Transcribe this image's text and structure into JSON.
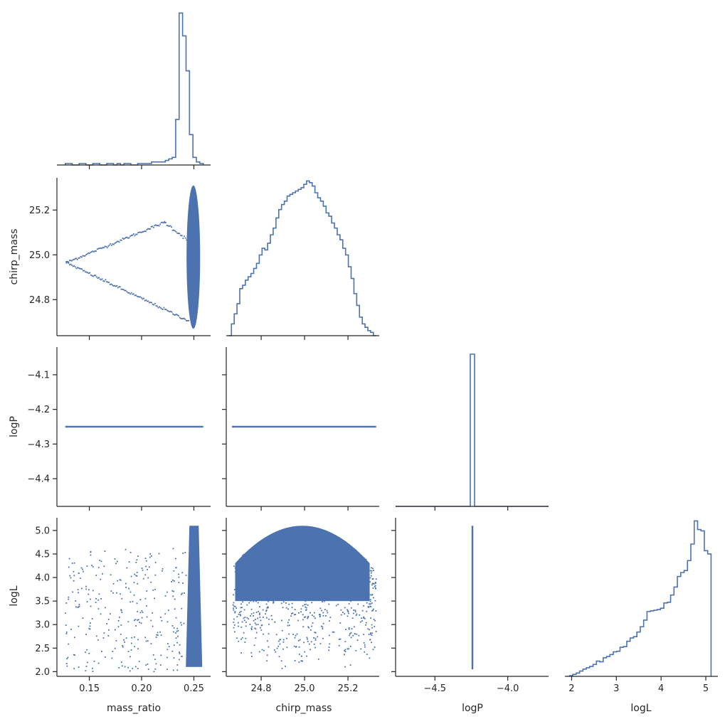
{
  "chart_data": {
    "type": "pairplot-corner",
    "color": "#4c72b0",
    "axis_color": "#262626",
    "variables": [
      "mass_ratio",
      "chirp_mass",
      "logP",
      "logL"
    ],
    "axis_labels": {
      "x": [
        "mass_ratio",
        "chirp_mass",
        "logP",
        "logL"
      ],
      "y": [
        "",
        "chirp_mass",
        "logP",
        "logL"
      ]
    },
    "ranges": {
      "mass_ratio": [
        0.119,
        0.266
      ],
      "chirp_mass": [
        24.639,
        25.344
      ],
      "logP": [
        -4.48,
        -4.02
      ],
      "logL": [
        1.9,
        5.27
      ]
    },
    "ticks": {
      "mass_ratio": [
        0.15,
        0.2,
        0.25
      ],
      "chirp_mass": [
        24.8,
        25.0,
        25.2
      ],
      "logP": [
        -4.4,
        -4.3,
        -4.2,
        -4.1
      ],
      "logP_x": [
        -4.5,
        -4.0
      ],
      "logL": [
        2.0,
        2.5,
        3.0,
        3.5,
        4.0,
        4.5,
        5.0
      ],
      "logL_x": [
        2,
        3,
        4,
        5
      ]
    },
    "tick_labels": {
      "mass_ratio": [
        "0.15",
        "0.20",
        "0.25"
      ],
      "chirp_mass": [
        "24.8",
        "25.0",
        "25.2"
      ],
      "logP": [
        "−4.4",
        "−4.3",
        "−4.2",
        "−4.1"
      ],
      "logP_x": [
        "−4.5",
        "−4.0"
      ],
      "logL": [
        "2.0",
        "2.5",
        "3.0",
        "3.5",
        "4.0",
        "4.5",
        "5.0"
      ],
      "logL_x": [
        "2",
        "3",
        "4",
        "5"
      ]
    },
    "logP_value": -4.25,
    "hist_mass_ratio": {
      "range": [
        0.127,
        0.259
      ],
      "counts": [
        1,
        1,
        0,
        0,
        1,
        1,
        0,
        0,
        1,
        1,
        0,
        0,
        1,
        1,
        0,
        1,
        0,
        1,
        1,
        0,
        0,
        1,
        1,
        1,
        1,
        2,
        2,
        2,
        2,
        3,
        4,
        5,
        30,
        100,
        85,
        62,
        20,
        5,
        2,
        1
      ]
    },
    "hist_chirp_mass": {
      "range": [
        24.65,
        25.33
      ],
      "counts": [
        0,
        7,
        13,
        19,
        28,
        30,
        33,
        35,
        37,
        40,
        43,
        48,
        52,
        51,
        55,
        60,
        64,
        70,
        75,
        78,
        80,
        83,
        84,
        85,
        86,
        87,
        88,
        90,
        92,
        91,
        89,
        85,
        82,
        80,
        77,
        73,
        71,
        67,
        64,
        60,
        57,
        52,
        48,
        41,
        34,
        25,
        18,
        11,
        7,
        5,
        3,
        2,
        0
      ]
    },
    "hist_logP": {
      "range": [
        -4.77,
        -3.72
      ],
      "spike_at": -4.25,
      "spike_height": 1.0
    },
    "hist_logL": {
      "range": [
        2.0,
        5.12
      ],
      "counts": [
        1,
        3,
        5,
        8,
        11,
        13,
        15,
        18,
        23,
        22,
        28,
        30,
        33,
        37,
        38,
        44,
        45,
        53,
        58,
        60,
        67,
        75,
        85,
        98,
        99,
        100,
        101,
        103,
        111,
        112,
        123,
        135,
        151,
        157,
        160,
        175,
        200,
        235,
        222,
        220,
        190,
        185
      ]
    }
  }
}
